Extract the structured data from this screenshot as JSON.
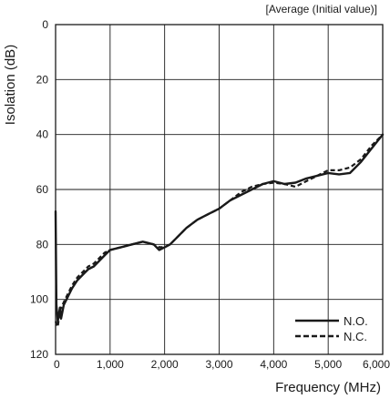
{
  "chart_data": {
    "type": "line",
    "title": "",
    "note": "[Average (Initial value)]",
    "xlabel": "Frequency (MHz)",
    "ylabel": "Isolation (dB)",
    "xlim": [
      0,
      6000
    ],
    "ylim": [
      0,
      120
    ],
    "y_inverted": true,
    "grid": true,
    "x_ticks": [
      0,
      1000,
      2000,
      3000,
      4000,
      5000,
      6000
    ],
    "x_tick_labels": [
      "0",
      "1,000",
      "2,000",
      "3,000",
      "4,000",
      "5,000",
      "6,000"
    ],
    "y_ticks": [
      0,
      20,
      40,
      60,
      80,
      100,
      120
    ],
    "y_tick_labels": [
      "0",
      "20",
      "40",
      "60",
      "80",
      "100",
      "120"
    ],
    "legend_position": "bottom-right",
    "series": [
      {
        "name": "N.O.",
        "style": "solid",
        "color": "#1a1a1a",
        "x": [
          0,
          15,
          40,
          80,
          100,
          150,
          200,
          300,
          400,
          500,
          600,
          700,
          800,
          900,
          1000,
          1200,
          1400,
          1600,
          1800,
          1900,
          2000,
          2100,
          2200,
          2400,
          2600,
          2800,
          3000,
          3200,
          3400,
          3600,
          3800,
          4000,
          4200,
          4400,
          4600,
          4800,
          5000,
          5200,
          5400,
          5600,
          5800,
          6000
        ],
        "y": [
          68,
          102,
          108,
          103,
          107,
          102,
          100,
          96,
          93,
          91,
          89,
          88,
          86,
          84,
          82,
          81,
          80,
          79,
          80,
          82,
          81,
          80,
          78,
          74,
          71,
          69,
          67,
          64,
          62,
          60,
          58,
          57,
          58,
          57.5,
          56,
          55,
          54,
          54.5,
          54,
          50,
          45,
          40
        ]
      },
      {
        "name": "N.C.",
        "style": "dashed",
        "color": "#1a1a1a",
        "x": [
          0,
          40,
          80,
          150,
          200,
          300,
          400,
          500,
          600,
          700,
          800,
          900,
          1000,
          1200,
          1400,
          1600,
          1800,
          1900,
          2000,
          2100,
          2200,
          2400,
          2600,
          2800,
          3000,
          3200,
          3400,
          3600,
          3800,
          4000,
          4200,
          4400,
          4600,
          4800,
          5000,
          5200,
          5400,
          5600,
          5800,
          6000
        ],
        "y": [
          108,
          110,
          104,
          101,
          99,
          95,
          92,
          90,
          88,
          87,
          85,
          83,
          82,
          81,
          80,
          79,
          80,
          81,
          81,
          80,
          78,
          74,
          71,
          69,
          67,
          64,
          61,
          59,
          58,
          57.5,
          58,
          59,
          57,
          55,
          53,
          53,
          52,
          49,
          44,
          40
        ]
      }
    ]
  }
}
